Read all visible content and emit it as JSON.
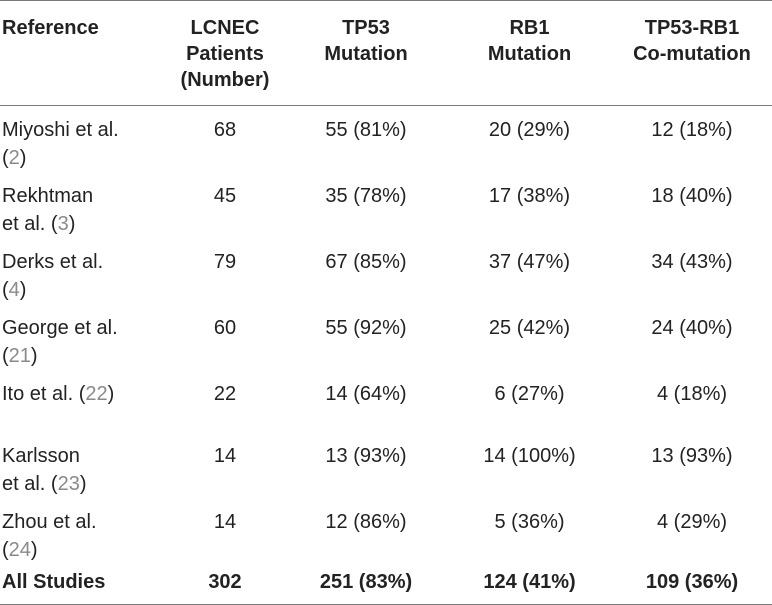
{
  "headers": [
    [
      "Reference"
    ],
    [
      "LCNEC",
      "Patients",
      "(Number)"
    ],
    [
      "TP53",
      "Mutation"
    ],
    [
      "RB1",
      "Mutation"
    ],
    [
      "TP53-RB1",
      "Co-mutation"
    ]
  ],
  "rows": [
    {
      "ref_line1": "Miyoshi et al.",
      "ref_line2_pre": "",
      "cite": "2",
      "patients": "68",
      "tp53": "55 (81%)",
      "rb1": "20 (29%)",
      "co": "12 (18%)"
    },
    {
      "ref_line1": "Rekhtman",
      "ref_line2_pre": "et al. ",
      "cite": "3",
      "patients": "45",
      "tp53": "35 (78%)",
      "rb1": "17 (38%)",
      "co": "18 (40%)"
    },
    {
      "ref_line1": "Derks et al.",
      "ref_line2_pre": "",
      "cite": "4",
      "patients": "79",
      "tp53": "67 (85%)",
      "rb1": "37 (47%)",
      "co": "34 (43%)"
    },
    {
      "ref_line1": "George et al.",
      "ref_line2_pre": "",
      "cite": "21",
      "patients": "60",
      "tp53": "55 (92%)",
      "rb1": "25 (42%)",
      "co": "24 (40%)"
    },
    {
      "ref_line1": "Ito et al. ",
      "ref_line2_pre": null,
      "cite": "22",
      "patients": "22",
      "tp53": "14 (64%)",
      "rb1": "6 (27%)",
      "co": "4 (18%)"
    },
    {
      "ref_line1": "Karlsson",
      "ref_line2_pre": "et al. ",
      "cite": "23",
      "patients": "14",
      "tp53": "13 (93%)",
      "rb1": "14 (100%)",
      "co": "13 (93%)"
    },
    {
      "ref_line1": "Zhou et al.",
      "ref_line2_pre": "",
      "cite": "24",
      "patients": "14",
      "tp53": "12 (86%)",
      "rb1": "5 (36%)",
      "co": "4 (29%)"
    }
  ],
  "total": {
    "label": "All Studies",
    "patients": "302",
    "tp53": "251 (83%)",
    "rb1": "124 (41%)",
    "co": "109 (36%)"
  }
}
